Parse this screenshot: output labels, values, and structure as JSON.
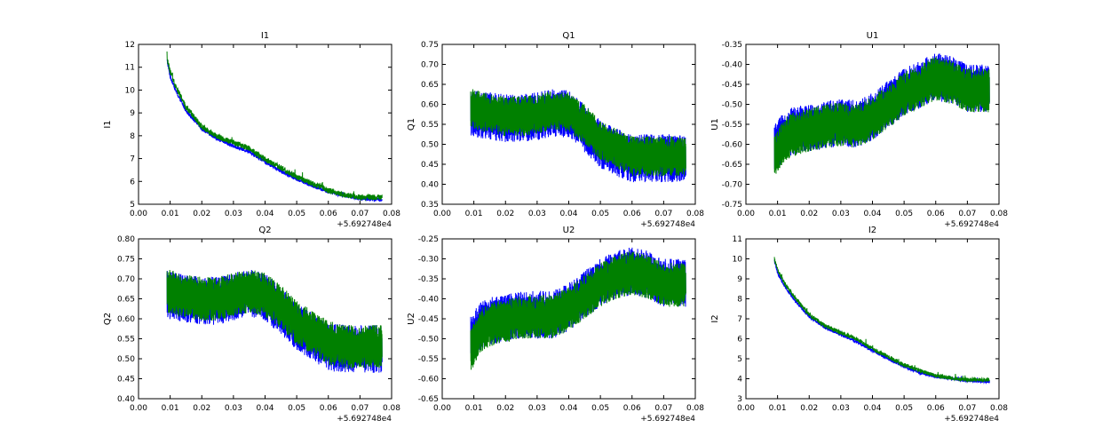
{
  "colors": {
    "series_a": "#0000ff",
    "series_b": "#008000",
    "frame": "#000000"
  },
  "chart_data": [
    {
      "type": "line",
      "title": "I1",
      "ylabel": "I1",
      "xlabel": "",
      "x_offset_label": "+5.692748e4",
      "xlim": [
        0.0,
        0.08
      ],
      "ylim": [
        5,
        12
      ],
      "xticks": [
        "0.00",
        "0.01",
        "0.02",
        "0.03",
        "0.04",
        "0.05",
        "0.06",
        "0.07",
        "0.08"
      ],
      "yticks": [
        "5",
        "6",
        "7",
        "8",
        "9",
        "10",
        "11",
        "12"
      ],
      "series": [
        {
          "color": "#0000ff",
          "noise": 0.08,
          "x": [
            0.009,
            0.01,
            0.012,
            0.015,
            0.02,
            0.025,
            0.03,
            0.035,
            0.04,
            0.045,
            0.05,
            0.055,
            0.06,
            0.065,
            0.07,
            0.077
          ],
          "y": [
            11.3,
            10.6,
            9.9,
            9.1,
            8.3,
            7.85,
            7.55,
            7.3,
            6.85,
            6.45,
            6.1,
            5.8,
            5.55,
            5.38,
            5.25,
            5.2
          ]
        },
        {
          "color": "#008000",
          "noise": 0.12,
          "x": [
            0.009,
            0.01,
            0.012,
            0.015,
            0.02,
            0.025,
            0.03,
            0.035,
            0.04,
            0.045,
            0.05,
            0.055,
            0.06,
            0.065,
            0.07,
            0.077
          ],
          "y": [
            11.4,
            10.8,
            10.1,
            9.25,
            8.4,
            7.95,
            7.7,
            7.45,
            6.95,
            6.6,
            6.2,
            5.9,
            5.6,
            5.42,
            5.3,
            5.3
          ]
        }
      ]
    },
    {
      "type": "line",
      "title": "Q1",
      "ylabel": "Q1",
      "xlabel": "",
      "x_offset_label": "+5.692748e4",
      "xlim": [
        0.0,
        0.08
      ],
      "ylim": [
        0.35,
        0.75
      ],
      "xticks": [
        "0.00",
        "0.01",
        "0.02",
        "0.03",
        "0.04",
        "0.05",
        "0.06",
        "0.07",
        "0.08"
      ],
      "yticks": [
        "0.35",
        "0.40",
        "0.45",
        "0.50",
        "0.55",
        "0.60",
        "0.65",
        "0.70",
        "0.75"
      ],
      "series": [
        {
          "color": "#0000ff",
          "amp": 0.06,
          "x": [
            0.009,
            0.015,
            0.02,
            0.025,
            0.03,
            0.035,
            0.04,
            0.045,
            0.05,
            0.055,
            0.06,
            0.065,
            0.07,
            0.077
          ],
          "y": [
            0.58,
            0.57,
            0.565,
            0.565,
            0.57,
            0.58,
            0.575,
            0.54,
            0.5,
            0.48,
            0.465,
            0.465,
            0.465,
            0.465
          ]
        },
        {
          "color": "#008000",
          "amp": 0.05,
          "x": [
            0.009,
            0.015,
            0.02,
            0.025,
            0.03,
            0.035,
            0.04,
            0.045,
            0.05,
            0.055,
            0.06,
            0.065,
            0.07,
            0.077
          ],
          "y": [
            0.59,
            0.575,
            0.57,
            0.57,
            0.575,
            0.585,
            0.58,
            0.55,
            0.51,
            0.49,
            0.47,
            0.47,
            0.47,
            0.47
          ]
        }
      ]
    },
    {
      "type": "line",
      "title": "U1",
      "ylabel": "U1",
      "xlabel": "",
      "x_offset_label": "+5.692748e4",
      "xlim": [
        0.0,
        0.08
      ],
      "ylim": [
        -0.75,
        -0.35
      ],
      "xticks": [
        "0.00",
        "0.01",
        "0.02",
        "0.03",
        "0.04",
        "0.05",
        "0.06",
        "0.07",
        "0.08"
      ],
      "yticks": [
        "-0.75",
        "-0.70",
        "-0.65",
        "-0.60",
        "-0.55",
        "-0.50",
        "-0.45",
        "-0.40",
        "-0.35"
      ],
      "series": [
        {
          "color": "#0000ff",
          "amp": 0.06,
          "x": [
            0.009,
            0.012,
            0.015,
            0.02,
            0.025,
            0.03,
            0.035,
            0.04,
            0.045,
            0.05,
            0.055,
            0.06,
            0.065,
            0.07,
            0.077
          ],
          "y": [
            -0.61,
            -0.58,
            -0.565,
            -0.56,
            -0.55,
            -0.545,
            -0.55,
            -0.53,
            -0.5,
            -0.47,
            -0.45,
            -0.43,
            -0.44,
            -0.46,
            -0.46
          ]
        },
        {
          "color": "#008000",
          "amp": 0.055,
          "x": [
            0.009,
            0.012,
            0.015,
            0.02,
            0.025,
            0.03,
            0.035,
            0.04,
            0.045,
            0.05,
            0.055,
            0.06,
            0.065,
            0.07,
            0.077
          ],
          "y": [
            -0.63,
            -0.59,
            -0.575,
            -0.565,
            -0.555,
            -0.55,
            -0.555,
            -0.535,
            -0.505,
            -0.475,
            -0.455,
            -0.435,
            -0.445,
            -0.465,
            -0.465
          ]
        }
      ]
    },
    {
      "type": "line",
      "title": "Q2",
      "ylabel": "Q2",
      "xlabel": "",
      "x_offset_label": "+5.692748e4",
      "xlim": [
        0.0,
        0.08
      ],
      "ylim": [
        0.4,
        0.8
      ],
      "xticks": [
        "0.00",
        "0.01",
        "0.02",
        "0.03",
        "0.04",
        "0.05",
        "0.06",
        "0.07",
        "0.08"
      ],
      "yticks": [
        "0.40",
        "0.45",
        "0.50",
        "0.55",
        "0.60",
        "0.65",
        "0.70",
        "0.75",
        "0.80"
      ],
      "series": [
        {
          "color": "#0000ff",
          "amp": 0.06,
          "x": [
            0.009,
            0.015,
            0.02,
            0.025,
            0.03,
            0.035,
            0.04,
            0.045,
            0.05,
            0.055,
            0.06,
            0.065,
            0.07,
            0.077
          ],
          "y": [
            0.66,
            0.65,
            0.645,
            0.645,
            0.655,
            0.665,
            0.655,
            0.62,
            0.58,
            0.555,
            0.53,
            0.525,
            0.525,
            0.525
          ]
        },
        {
          "color": "#008000",
          "amp": 0.055,
          "x": [
            0.009,
            0.015,
            0.02,
            0.025,
            0.03,
            0.035,
            0.04,
            0.045,
            0.05,
            0.055,
            0.06,
            0.065,
            0.07,
            0.077
          ],
          "y": [
            0.67,
            0.655,
            0.65,
            0.65,
            0.66,
            0.67,
            0.66,
            0.63,
            0.59,
            0.565,
            0.54,
            0.53,
            0.53,
            0.53
          ]
        }
      ]
    },
    {
      "type": "line",
      "title": "U2",
      "ylabel": "U2",
      "xlabel": "",
      "x_offset_label": "+5.692748e4",
      "xlim": [
        0.0,
        0.08
      ],
      "ylim": [
        -0.65,
        -0.25
      ],
      "xticks": [
        "0.00",
        "0.01",
        "0.02",
        "0.03",
        "0.04",
        "0.05",
        "0.06",
        "0.07",
        "0.08"
      ],
      "yticks": [
        "-0.65",
        "-0.60",
        "-0.55",
        "-0.50",
        "-0.45",
        "-0.40",
        "-0.35",
        "-0.30",
        "-0.25"
      ],
      "series": [
        {
          "color": "#0000ff",
          "amp": 0.06,
          "x": [
            0.009,
            0.012,
            0.015,
            0.02,
            0.025,
            0.03,
            0.035,
            0.04,
            0.045,
            0.05,
            0.055,
            0.06,
            0.065,
            0.07,
            0.077
          ],
          "y": [
            -0.5,
            -0.47,
            -0.455,
            -0.45,
            -0.44,
            -0.44,
            -0.44,
            -0.42,
            -0.39,
            -0.36,
            -0.34,
            -0.33,
            -0.34,
            -0.36,
            -0.36
          ]
        },
        {
          "color": "#008000",
          "amp": 0.055,
          "x": [
            0.009,
            0.012,
            0.015,
            0.02,
            0.025,
            0.03,
            0.035,
            0.04,
            0.045,
            0.05,
            0.055,
            0.06,
            0.065,
            0.07,
            0.077
          ],
          "y": [
            -0.53,
            -0.48,
            -0.465,
            -0.455,
            -0.445,
            -0.445,
            -0.445,
            -0.425,
            -0.395,
            -0.365,
            -0.345,
            -0.335,
            -0.345,
            -0.365,
            -0.365
          ]
        }
      ]
    },
    {
      "type": "line",
      "title": "I2",
      "ylabel": "I2",
      "xlabel": "",
      "x_offset_label": "+5.692748e4",
      "xlim": [
        0.0,
        0.08
      ],
      "ylim": [
        3,
        11
      ],
      "xticks": [
        "0.00",
        "0.01",
        "0.02",
        "0.03",
        "0.04",
        "0.05",
        "0.06",
        "0.07",
        "0.08"
      ],
      "yticks": [
        "3",
        "4",
        "5",
        "6",
        "7",
        "8",
        "9",
        "10",
        "11"
      ],
      "series": [
        {
          "color": "#0000ff",
          "noise": 0.07,
          "x": [
            0.009,
            0.01,
            0.012,
            0.015,
            0.02,
            0.025,
            0.03,
            0.035,
            0.04,
            0.045,
            0.05,
            0.055,
            0.06,
            0.065,
            0.07,
            0.077
          ],
          "y": [
            9.9,
            9.3,
            8.7,
            8.0,
            7.1,
            6.55,
            6.2,
            5.85,
            5.4,
            5.0,
            4.6,
            4.3,
            4.1,
            4.0,
            3.9,
            3.85
          ]
        },
        {
          "color": "#008000",
          "noise": 0.1,
          "x": [
            0.009,
            0.01,
            0.012,
            0.015,
            0.02,
            0.025,
            0.03,
            0.035,
            0.04,
            0.045,
            0.05,
            0.055,
            0.06,
            0.065,
            0.07,
            0.077
          ],
          "y": [
            10.0,
            9.45,
            8.85,
            8.15,
            7.2,
            6.65,
            6.3,
            6.0,
            5.5,
            5.1,
            4.7,
            4.4,
            4.15,
            4.02,
            3.95,
            3.95
          ]
        }
      ]
    }
  ]
}
